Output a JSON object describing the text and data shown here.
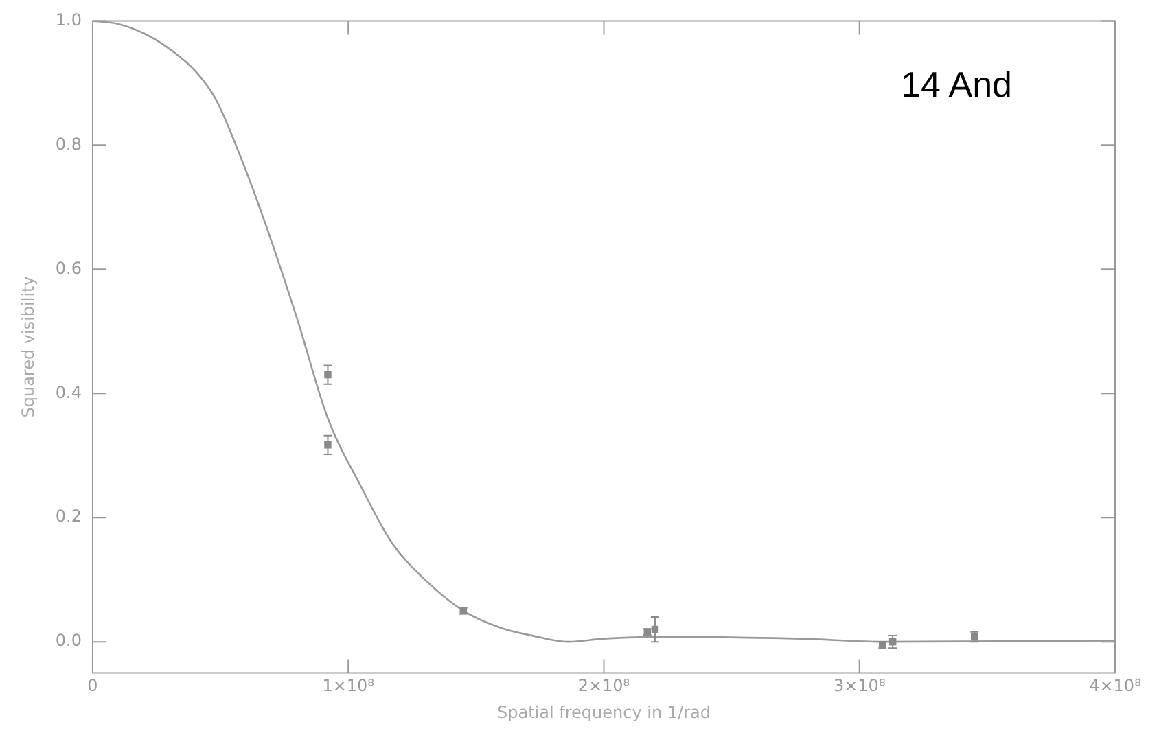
{
  "chart_data": {
    "type": "scatter",
    "xlabel": "Spatial frequency in 1/rad",
    "ylabel": "Squared visibility",
    "annotations": [
      "14 And"
    ],
    "xlim": [
      0,
      400000000
    ],
    "xticks": [
      {
        "value": 0,
        "label": "0"
      },
      {
        "value": 100000000,
        "label": "1×10⁸"
      },
      {
        "value": 200000000,
        "label": "2×10⁸"
      },
      {
        "value": 300000000,
        "label": "3×10⁸"
      },
      {
        "value": 400000000,
        "label": "4×10⁸"
      }
    ],
    "ylim": [
      -0.05,
      1.0
    ],
    "yticks": [
      {
        "value": 0,
        "label": "0.0"
      },
      {
        "value": 0.2,
        "label": "0.2"
      },
      {
        "value": 0.4,
        "label": "0.4"
      },
      {
        "value": 0.6,
        "label": "0.6"
      },
      {
        "value": 0.8,
        "label": "0.8"
      },
      {
        "value": 1,
        "label": "1.0"
      }
    ],
    "grid": false,
    "legend": false,
    "series": [
      {
        "type": "line",
        "color": "#9a9a9a",
        "line_style": "solid",
        "x": [
          0,
          10000000,
          20000000,
          30000000,
          40000000,
          48000000,
          57000000,
          67000000,
          80000000,
          92000000,
          105000000,
          117000000,
          130000000,
          145000000,
          160000000,
          172000000,
          186000000,
          200000000,
          222000000,
          277000000,
          310000000,
          400000000
        ],
        "values": [
          1.0,
          0.995,
          0.98,
          0.955,
          0.92,
          0.875,
          0.79,
          0.68,
          0.52,
          0.36,
          0.25,
          0.16,
          0.1,
          0.05,
          0.022,
          0.01,
          0.0,
          0.005,
          0.008,
          0.005,
          0.0,
          0.002
        ]
      },
      {
        "type": "scatter",
        "color": "#8a8a8a",
        "marker": "square",
        "x": [
          92000000,
          92000000,
          145000000,
          217000000,
          220000000,
          309000000,
          313000000,
          345000000
        ],
        "values": [
          0.43,
          0.317,
          0.05,
          0.016,
          0.02,
          -0.005,
          0.0,
          0.008
        ],
        "errors": [
          0.015,
          0.015,
          0.005,
          0.005,
          0.02,
          0.005,
          0.01,
          0.008
        ]
      }
    ]
  }
}
